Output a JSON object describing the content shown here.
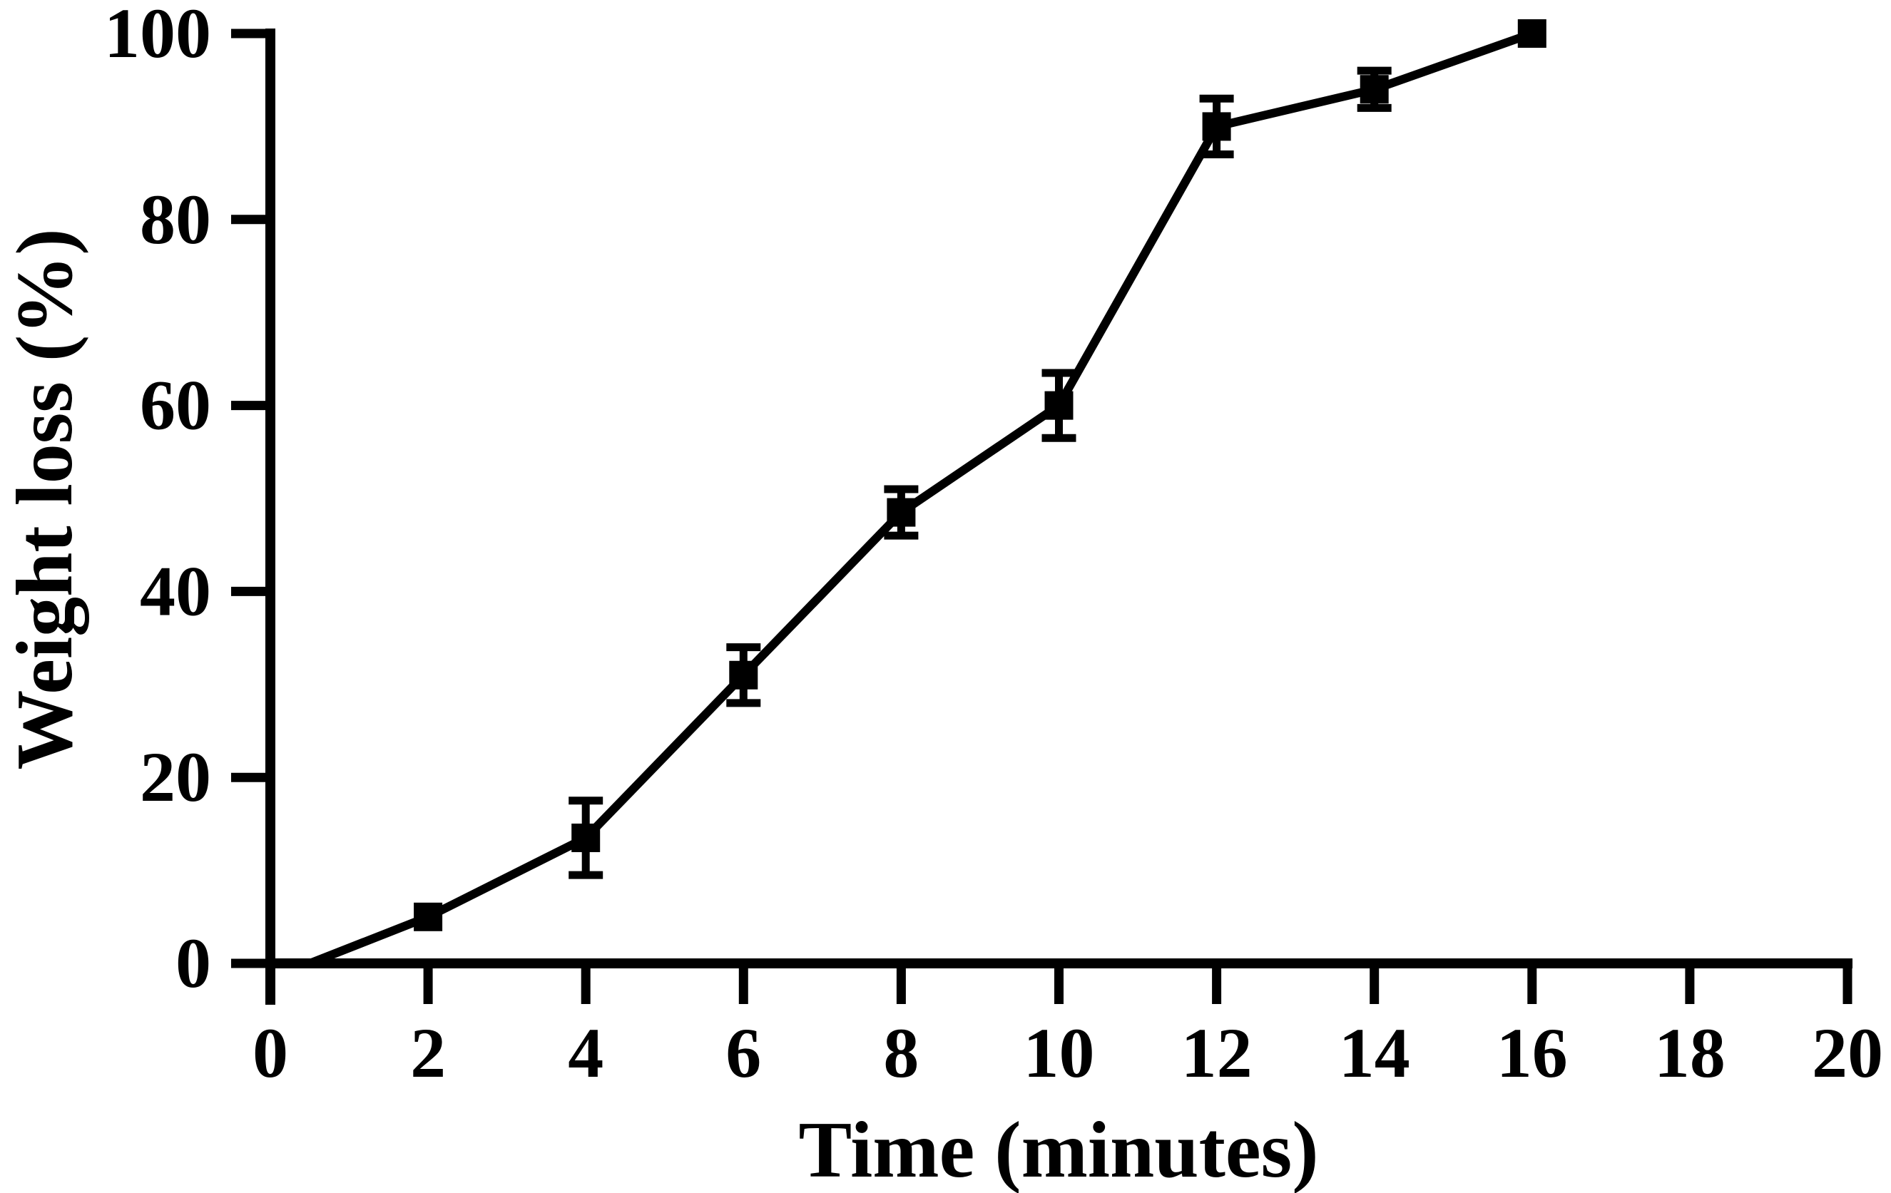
{
  "figure": {
    "background": "#ffffff",
    "foreground": "#000000"
  },
  "chart_data": {
    "type": "line",
    "title": "",
    "xlabel": "Time (minutes)",
    "ylabel": "Weight loss (%)",
    "xlim": [
      0,
      20
    ],
    "ylim": [
      0,
      100
    ],
    "xticks": [
      0,
      2,
      4,
      6,
      8,
      10,
      12,
      14,
      16,
      18,
      20
    ],
    "yticks": [
      0,
      20,
      40,
      60,
      80,
      100
    ],
    "grid": false,
    "legend": false,
    "series": [
      {
        "name": "Weight loss",
        "marker": "filled-square",
        "color": "#000000",
        "error_bars": "vertical-with-caps",
        "line_start": {
          "x": 0.5,
          "y": 0
        },
        "points": [
          {
            "x": 2,
            "y": 5,
            "yerr": 0
          },
          {
            "x": 4,
            "y": 13.5,
            "yerr": 4
          },
          {
            "x": 6,
            "y": 31,
            "yerr": 3
          },
          {
            "x": 8,
            "y": 48.5,
            "yerr": 2.5
          },
          {
            "x": 10,
            "y": 60,
            "yerr": 3.5
          },
          {
            "x": 12,
            "y": 90,
            "yerr": 3
          },
          {
            "x": 14,
            "y": 94,
            "yerr": 2
          },
          {
            "x": 16,
            "y": 100,
            "yerr": 0
          }
        ]
      }
    ]
  }
}
